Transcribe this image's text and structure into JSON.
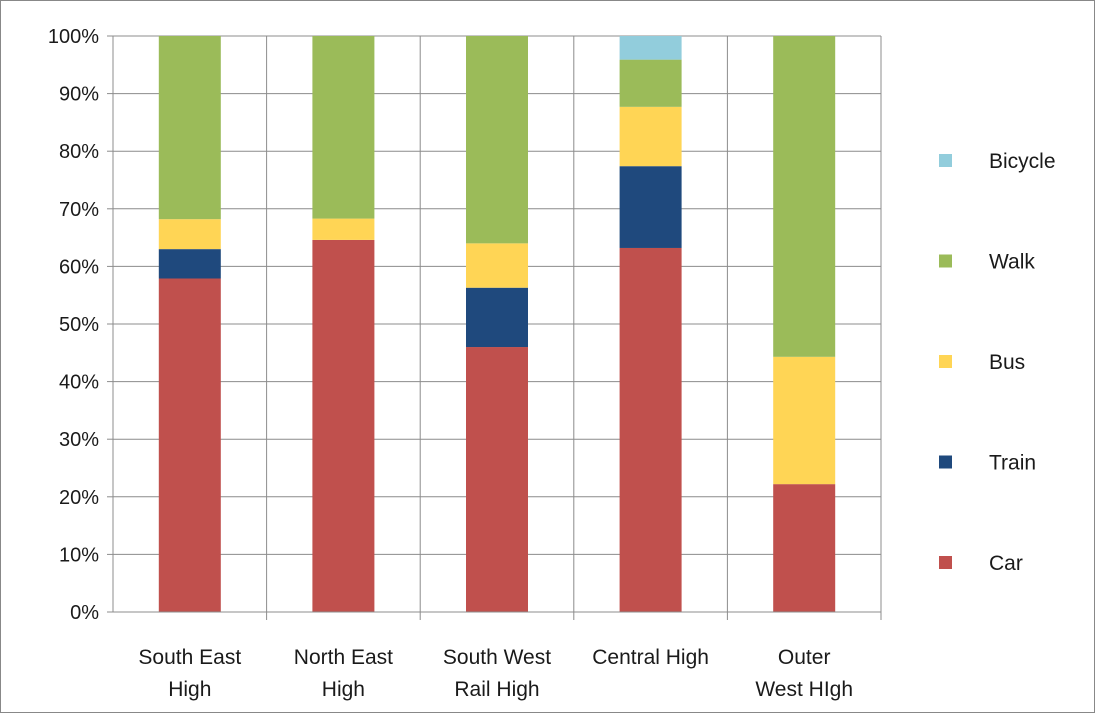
{
  "chart_data": {
    "type": "bar",
    "stacked": true,
    "percent": true,
    "title": "",
    "xlabel": "",
    "ylabel": "",
    "ylim": [
      0,
      100
    ],
    "y_ticks": [
      "0%",
      "10%",
      "20%",
      "30%",
      "40%",
      "50%",
      "60%",
      "70%",
      "80%",
      "90%",
      "100%"
    ],
    "grid": true,
    "legend_position": "right",
    "categories": [
      [
        "South East",
        "High"
      ],
      [
        "North East",
        "High"
      ],
      [
        "South West",
        "Rail High"
      ],
      [
        "Central High"
      ],
      [
        "Outer",
        "West HIgh"
      ]
    ],
    "series": [
      {
        "name": "Car",
        "color": "#c0504d",
        "values": [
          57.9,
          64.6,
          46.0,
          63.2,
          22.2
        ]
      },
      {
        "name": "Train",
        "color": "#1f497d",
        "values": [
          5.1,
          0.0,
          10.3,
          14.2,
          0.0
        ]
      },
      {
        "name": "Bus",
        "color": "#ffd555",
        "values": [
          5.2,
          3.7,
          7.7,
          10.3,
          22.1
        ]
      },
      {
        "name": "Walk",
        "color": "#9bbb59",
        "values": [
          31.8,
          31.7,
          36.0,
          8.2,
          55.7
        ]
      },
      {
        "name": "Bicycle",
        "color": "#92cddc",
        "values": [
          0.0,
          0.0,
          0.0,
          4.1,
          0.0
        ]
      }
    ],
    "legend_order": [
      "Bicycle",
      "Walk",
      "Bus",
      "Train",
      "Car"
    ]
  }
}
